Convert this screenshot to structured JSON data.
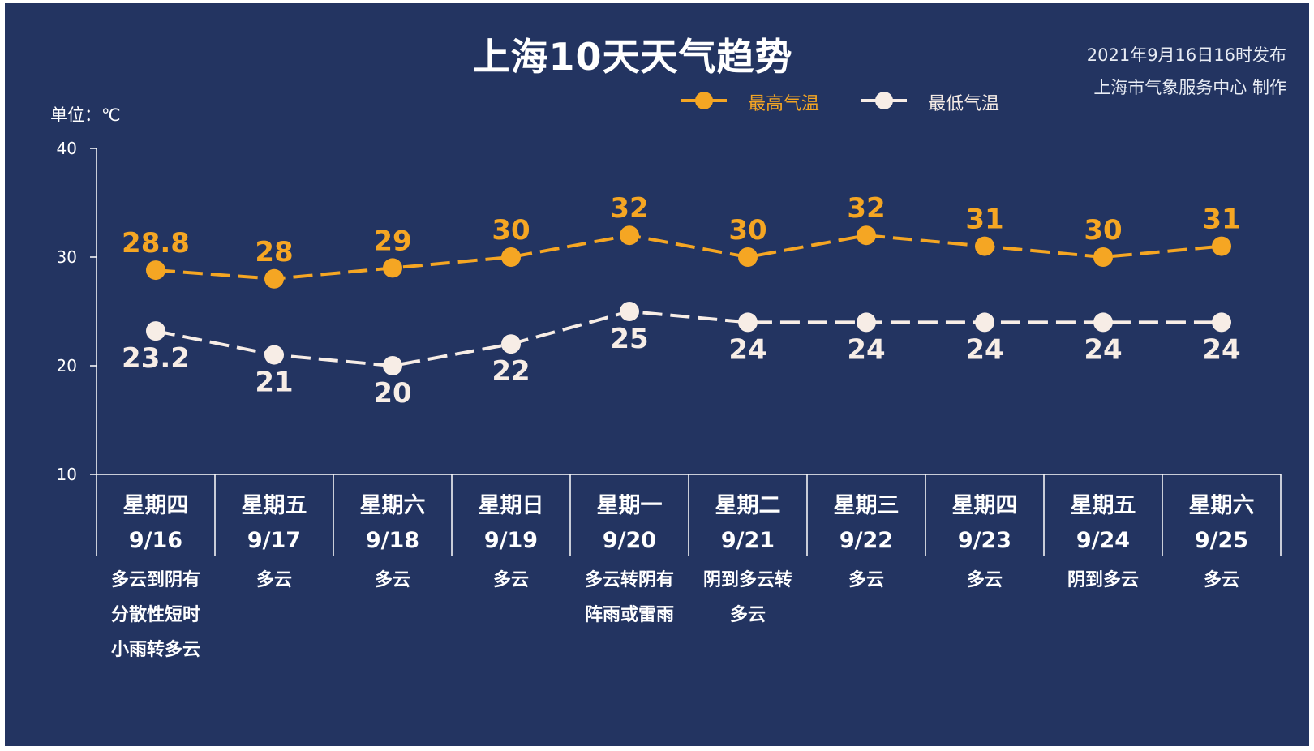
{
  "title": "上海10天天气趋势",
  "meta": {
    "publish_time": "2021年9月16日16时发布",
    "producer": "上海市气象服务中心 制作"
  },
  "unit_label": "单位：℃",
  "colors": {
    "background": "#233461",
    "high": "#F5A623",
    "low": "#F7EDE6",
    "axis": "#ffffff"
  },
  "chart_data": {
    "type": "line",
    "ylim": [
      10,
      40
    ],
    "yticks": [
      "10",
      "20",
      "30",
      "40"
    ],
    "days": [
      {
        "weekday": "星期四",
        "date": "9/16",
        "weather": [
          "多云到阴有",
          "分散性短时",
          "小雨转多云"
        ]
      },
      {
        "weekday": "星期五",
        "date": "9/17",
        "weather": [
          "多云"
        ]
      },
      {
        "weekday": "星期六",
        "date": "9/18",
        "weather": [
          "多云"
        ]
      },
      {
        "weekday": "星期日",
        "date": "9/19",
        "weather": [
          "多云"
        ]
      },
      {
        "weekday": "星期一",
        "date": "9/20",
        "weather": [
          "多云转阴有",
          "阵雨或雷雨"
        ]
      },
      {
        "weekday": "星期二",
        "date": "9/21",
        "weather": [
          "阴到多云转",
          "多云"
        ]
      },
      {
        "weekday": "星期三",
        "date": "9/22",
        "weather": [
          "多云"
        ]
      },
      {
        "weekday": "星期四",
        "date": "9/23",
        "weather": [
          "多云"
        ]
      },
      {
        "weekday": "星期五",
        "date": "9/24",
        "weather": [
          "阴到多云"
        ]
      },
      {
        "weekday": "星期六",
        "date": "9/25",
        "weather": [
          "多云"
        ]
      }
    ],
    "series": [
      {
        "name": "最高气温",
        "key": "high",
        "values": [
          28.8,
          28,
          29,
          30,
          32,
          30,
          32,
          31,
          30,
          31
        ],
        "labels": [
          "28.8",
          "28",
          "29",
          "30",
          "32",
          "30",
          "32",
          "31",
          "30",
          "31"
        ]
      },
      {
        "name": "最低气温",
        "key": "low",
        "values": [
          23.2,
          21,
          20,
          22,
          25,
          24,
          24,
          24,
          24,
          24
        ],
        "labels": [
          "23.2",
          "21",
          "20",
          "22",
          "25",
          "24",
          "24",
          "24",
          "24",
          "24"
        ]
      }
    ]
  }
}
